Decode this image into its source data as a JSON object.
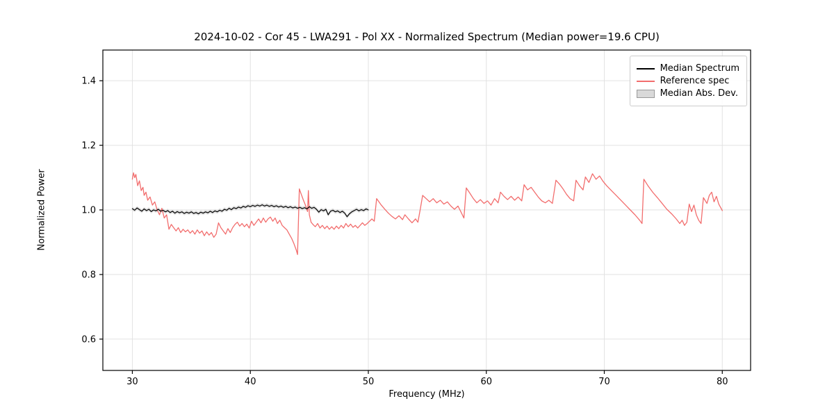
{
  "title": "2024-10-02 - Cor 45 - LWA291 - Pol XX - Normalized Spectrum (Median power=19.6 CPU)",
  "axes": {
    "xlabel": "Frequency (MHz)",
    "ylabel": "Normalized Power"
  },
  "legend": {
    "items": [
      {
        "label": "Median Spectrum",
        "color": "#000000",
        "type": "line"
      },
      {
        "label": "Reference spec",
        "color": "#f26d6d",
        "type": "line"
      },
      {
        "label": "Median Abs. Dev.",
        "color": "#d9d9d9",
        "border": "#999999",
        "type": "patch"
      }
    ]
  },
  "chart_data": {
    "type": "line",
    "title": "2024-10-02 - Cor 45 - LWA291 - Pol XX - Normalized Spectrum (Median power=19.6 CPU)",
    "xlabel": "Frequency (MHz)",
    "ylabel": "Normalized Power",
    "xlim": [
      27.5,
      82.4
    ],
    "ylim": [
      0.503,
      1.495
    ],
    "xticks": [
      30,
      40,
      50,
      60,
      70,
      80
    ],
    "yticks": [
      0.6,
      0.8,
      1.0,
      1.2,
      1.4
    ],
    "grid": true,
    "grid_color": "#e2e2e2",
    "series": [
      {
        "name": "Median Abs. Dev.",
        "render": "band",
        "color": "#d9d9d9",
        "band_dev": 0.006
      },
      {
        "name": "Reference spec",
        "render": "line",
        "color": "#f26d6d",
        "width": 1.3,
        "points": [
          [
            30.0,
            1.095
          ],
          [
            30.1,
            1.115
          ],
          [
            30.2,
            1.1
          ],
          [
            30.3,
            1.11
          ],
          [
            30.45,
            1.075
          ],
          [
            30.6,
            1.09
          ],
          [
            30.75,
            1.06
          ],
          [
            30.9,
            1.07
          ],
          [
            31.0,
            1.045
          ],
          [
            31.15,
            1.055
          ],
          [
            31.3,
            1.03
          ],
          [
            31.5,
            1.04
          ],
          [
            31.7,
            1.015
          ],
          [
            31.9,
            1.025
          ],
          [
            32.1,
            1.0
          ],
          [
            32.3,
            0.985
          ],
          [
            32.5,
            1.005
          ],
          [
            32.7,
            0.975
          ],
          [
            32.9,
            0.985
          ],
          [
            33.1,
            0.94
          ],
          [
            33.3,
            0.955
          ],
          [
            33.5,
            0.945
          ],
          [
            33.7,
            0.935
          ],
          [
            33.9,
            0.945
          ],
          [
            34.1,
            0.93
          ],
          [
            34.3,
            0.94
          ],
          [
            34.5,
            0.932
          ],
          [
            34.7,
            0.938
          ],
          [
            34.9,
            0.928
          ],
          [
            35.1,
            0.936
          ],
          [
            35.3,
            0.925
          ],
          [
            35.5,
            0.938
          ],
          [
            35.7,
            0.928
          ],
          [
            35.9,
            0.935
          ],
          [
            36.1,
            0.92
          ],
          [
            36.3,
            0.932
          ],
          [
            36.5,
            0.922
          ],
          [
            36.7,
            0.93
          ],
          [
            36.9,
            0.915
          ],
          [
            37.1,
            0.925
          ],
          [
            37.3,
            0.96
          ],
          [
            37.5,
            0.945
          ],
          [
            37.7,
            0.935
          ],
          [
            37.9,
            0.925
          ],
          [
            38.1,
            0.942
          ],
          [
            38.3,
            0.93
          ],
          [
            38.5,
            0.945
          ],
          [
            38.7,
            0.955
          ],
          [
            38.9,
            0.962
          ],
          [
            39.1,
            0.95
          ],
          [
            39.3,
            0.958
          ],
          [
            39.5,
            0.948
          ],
          [
            39.7,
            0.956
          ],
          [
            39.9,
            0.944
          ],
          [
            40.1,
            0.965
          ],
          [
            40.3,
            0.952
          ],
          [
            40.5,
            0.962
          ],
          [
            40.7,
            0.972
          ],
          [
            40.9,
            0.96
          ],
          [
            41.1,
            0.975
          ],
          [
            41.3,
            0.962
          ],
          [
            41.5,
            0.972
          ],
          [
            41.7,
            0.978
          ],
          [
            41.9,
            0.965
          ],
          [
            42.1,
            0.975
          ],
          [
            42.3,
            0.958
          ],
          [
            42.5,
            0.968
          ],
          [
            42.7,
            0.952
          ],
          [
            42.9,
            0.945
          ],
          [
            43.1,
            0.938
          ],
          [
            43.3,
            0.925
          ],
          [
            43.5,
            0.912
          ],
          [
            43.7,
            0.895
          ],
          [
            43.9,
            0.875
          ],
          [
            44.0,
            0.862
          ],
          [
            44.15,
            1.065
          ],
          [
            44.3,
            1.05
          ],
          [
            44.5,
            1.03
          ],
          [
            44.7,
            1.012
          ],
          [
            44.85,
            0.995
          ],
          [
            44.92,
            1.06
          ],
          [
            45.0,
            0.985
          ],
          [
            45.15,
            0.962
          ],
          [
            45.3,
            0.955
          ],
          [
            45.5,
            0.948
          ],
          [
            45.7,
            0.958
          ],
          [
            45.9,
            0.944
          ],
          [
            46.1,
            0.952
          ],
          [
            46.3,
            0.942
          ],
          [
            46.5,
            0.95
          ],
          [
            46.7,
            0.94
          ],
          [
            46.9,
            0.948
          ],
          [
            47.1,
            0.94
          ],
          [
            47.3,
            0.95
          ],
          [
            47.5,
            0.942
          ],
          [
            47.7,
            0.952
          ],
          [
            47.9,
            0.944
          ],
          [
            48.1,
            0.958
          ],
          [
            48.3,
            0.948
          ],
          [
            48.5,
            0.956
          ],
          [
            48.7,
            0.946
          ],
          [
            48.9,
            0.952
          ],
          [
            49.1,
            0.944
          ],
          [
            49.3,
            0.952
          ],
          [
            49.5,
            0.96
          ],
          [
            49.7,
            0.952
          ],
          [
            49.9,
            0.958
          ],
          [
            50.1,
            0.965
          ],
          [
            50.3,
            0.972
          ],
          [
            50.5,
            0.965
          ],
          [
            50.7,
            1.035
          ],
          [
            50.9,
            1.025
          ],
          [
            51.1,
            1.015
          ],
          [
            51.4,
            1.002
          ],
          [
            51.7,
            0.99
          ],
          [
            52.0,
            0.98
          ],
          [
            52.3,
            0.972
          ],
          [
            52.6,
            0.982
          ],
          [
            52.9,
            0.97
          ],
          [
            53.1,
            0.985
          ],
          [
            53.4,
            0.972
          ],
          [
            53.7,
            0.96
          ],
          [
            54.0,
            0.972
          ],
          [
            54.2,
            0.962
          ],
          [
            54.4,
            1.002
          ],
          [
            54.6,
            1.045
          ],
          [
            54.9,
            1.035
          ],
          [
            55.2,
            1.025
          ],
          [
            55.5,
            1.035
          ],
          [
            55.8,
            1.022
          ],
          [
            56.1,
            1.03
          ],
          [
            56.4,
            1.018
          ],
          [
            56.7,
            1.025
          ],
          [
            57.0,
            1.012
          ],
          [
            57.3,
            1.002
          ],
          [
            57.6,
            1.012
          ],
          [
            57.9,
            0.99
          ],
          [
            58.1,
            0.975
          ],
          [
            58.3,
            1.068
          ],
          [
            58.6,
            1.052
          ],
          [
            58.9,
            1.035
          ],
          [
            59.2,
            1.022
          ],
          [
            59.5,
            1.032
          ],
          [
            59.8,
            1.02
          ],
          [
            60.1,
            1.028
          ],
          [
            60.4,
            1.015
          ],
          [
            60.7,
            1.035
          ],
          [
            61.0,
            1.022
          ],
          [
            61.2,
            1.055
          ],
          [
            61.5,
            1.042
          ],
          [
            61.8,
            1.032
          ],
          [
            62.1,
            1.042
          ],
          [
            62.4,
            1.03
          ],
          [
            62.7,
            1.04
          ],
          [
            63.0,
            1.028
          ],
          [
            63.2,
            1.078
          ],
          [
            63.5,
            1.062
          ],
          [
            63.8,
            1.07
          ],
          [
            64.1,
            1.055
          ],
          [
            64.4,
            1.04
          ],
          [
            64.7,
            1.028
          ],
          [
            65.0,
            1.022
          ],
          [
            65.3,
            1.03
          ],
          [
            65.6,
            1.02
          ],
          [
            65.9,
            1.092
          ],
          [
            66.2,
            1.08
          ],
          [
            66.5,
            1.065
          ],
          [
            66.8,
            1.048
          ],
          [
            67.1,
            1.035
          ],
          [
            67.4,
            1.028
          ],
          [
            67.6,
            1.092
          ],
          [
            67.9,
            1.075
          ],
          [
            68.2,
            1.062
          ],
          [
            68.4,
            1.102
          ],
          [
            68.7,
            1.085
          ],
          [
            69.0,
            1.112
          ],
          [
            69.3,
            1.095
          ],
          [
            69.6,
            1.105
          ],
          [
            69.9,
            1.088
          ],
          [
            70.2,
            1.075
          ],
          [
            70.6,
            1.06
          ],
          [
            71.0,
            1.045
          ],
          [
            71.4,
            1.03
          ],
          [
            71.8,
            1.015
          ],
          [
            72.2,
            1.0
          ],
          [
            72.6,
            0.985
          ],
          [
            73.0,
            0.968
          ],
          [
            73.2,
            0.958
          ],
          [
            73.35,
            1.095
          ],
          [
            73.7,
            1.075
          ],
          [
            74.1,
            1.055
          ],
          [
            74.5,
            1.038
          ],
          [
            74.9,
            1.02
          ],
          [
            75.3,
            1.002
          ],
          [
            75.7,
            0.988
          ],
          [
            76.1,
            0.972
          ],
          [
            76.4,
            0.958
          ],
          [
            76.6,
            0.968
          ],
          [
            76.8,
            0.952
          ],
          [
            77.0,
            0.962
          ],
          [
            77.2,
            1.018
          ],
          [
            77.4,
            0.995
          ],
          [
            77.6,
            1.015
          ],
          [
            77.8,
            0.985
          ],
          [
            78.0,
            0.968
          ],
          [
            78.2,
            0.958
          ],
          [
            78.4,
            1.038
          ],
          [
            78.7,
            1.02
          ],
          [
            78.9,
            1.045
          ],
          [
            79.1,
            1.055
          ],
          [
            79.3,
            1.025
          ],
          [
            79.5,
            1.042
          ],
          [
            79.7,
            1.018
          ],
          [
            80.0,
            0.998
          ]
        ]
      },
      {
        "name": "Median Spectrum",
        "render": "line",
        "color": "#000000",
        "width": 1.2,
        "x0": 30.0,
        "dx": 0.2,
        "values": [
          1.004,
          0.999,
          1.006,
          1.001,
          0.996,
          1.003,
          0.998,
          1.002,
          0.995,
          1.0,
          0.997,
          1.002,
          0.996,
          0.999,
          0.994,
          0.998,
          0.992,
          0.996,
          0.99,
          0.995,
          0.991,
          0.994,
          0.989,
          0.993,
          0.99,
          0.994,
          0.989,
          0.992,
          0.988,
          0.993,
          0.99,
          0.994,
          0.991,
          0.996,
          0.992,
          0.997,
          0.994,
          0.999,
          0.996,
          1.002,
          0.999,
          1.005,
          1.001,
          1.007,
          1.004,
          1.009,
          1.006,
          1.011,
          1.008,
          1.013,
          1.01,
          1.014,
          1.011,
          1.015,
          1.012,
          1.016,
          1.012,
          1.015,
          1.011,
          1.014,
          1.01,
          1.013,
          1.009,
          1.012,
          1.008,
          1.011,
          1.007,
          1.01,
          1.006,
          1.009,
          1.005,
          1.008,
          1.004,
          1.007,
          1.003,
          1.01,
          1.005,
          1.008,
          1.002,
          0.993,
          1.001,
          0.997,
          1.002,
          0.985,
          0.996,
          0.999,
          0.994,
          0.997,
          0.992,
          0.996,
          0.99,
          0.979,
          0.988,
          0.994,
          0.998,
          1.002,
          0.997,
          1.001,
          0.998,
          1.003,
          1.0
        ]
      }
    ]
  },
  "plot_geometry_note": "axes box"
}
